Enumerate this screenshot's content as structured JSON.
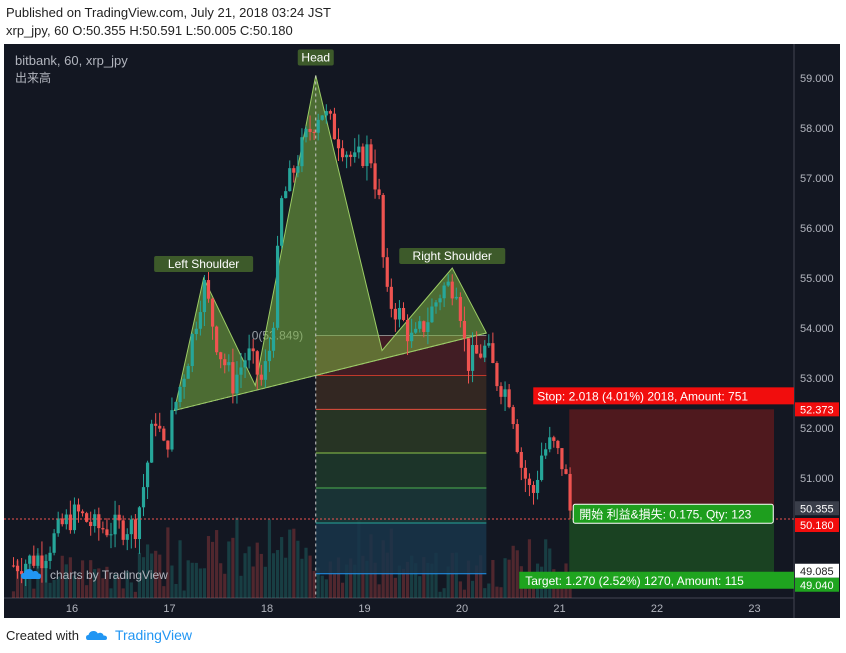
{
  "header": {
    "published": "Published on TradingView.com, July 21, 2018 03:24 JST",
    "ohlc": "xrp_jpy, 60 O:50.355 H:50.591 L:50.005 C:50.180"
  },
  "legend": {
    "symbol": "bitbank, 60, xrp_jpy",
    "volume_label": "出来高"
  },
  "watermark": "charts by TradingView",
  "footer": {
    "created": "Created with",
    "brand": "TradingView"
  },
  "colors": {
    "background": "#131722",
    "up": "#26a69a",
    "down": "#ef5350",
    "pattern_fill": "#7cb342",
    "stop_red": "#f10d0d",
    "target_green": "#1fa41f",
    "pnl_label": "#1e9e1e"
  },
  "chart_data": {
    "type": "candlestick",
    "series_name": "xrp_jpy",
    "ylim": [
      48.6,
      59.6
    ],
    "y_ticks": [
      "59.000",
      "58.000",
      "57.000",
      "56.000",
      "55.000",
      "54.000",
      "53.000",
      "52.000",
      "51.000"
    ],
    "x_ticks": [
      "16",
      "17",
      "18",
      "19",
      "20",
      "21",
      "22",
      "23"
    ],
    "pattern_labels": {
      "left_shoulder": "Left Shoulder",
      "head": "Head",
      "right_shoulder": "Right Shoulder",
      "fib_zero": "0(53.849)"
    },
    "pattern_points": [
      {
        "day": 17.05,
        "price": 52.35
      },
      {
        "day": 17.35,
        "price": 55.0
      },
      {
        "day": 17.88,
        "price": 52.85
      },
      {
        "day": 18.5,
        "price": 59.05
      },
      {
        "day": 19.18,
        "price": 53.55
      },
      {
        "day": 19.9,
        "price": 55.2
      },
      {
        "day": 20.25,
        "price": 53.9
      }
    ],
    "fib_levels": [
      53.849,
      53.05,
      52.373,
      51.5,
      50.8,
      50.1,
      49.085
    ],
    "position": {
      "stop_label": "Stop: 2.018 (4.01%) 2018, Amount: 751",
      "target_label": "Target: 1.270 (2.52%) 1270, Amount: 115",
      "pnl_label": "開始 利益&損失: 0.175, Qty: 123",
      "stop_price": 52.373,
      "entry_price": 50.355,
      "target_price": 49.085,
      "stop_price_label": "52.373",
      "entry_price_label": "50.355",
      "current_price_label": "50.180",
      "target_price_label": "49.085",
      "target_price_label2": "49.040"
    },
    "keypoints": [
      {
        "day": 15.4,
        "price": 49.25
      },
      {
        "day": 15.7,
        "price": 49.45
      },
      {
        "day": 15.9,
        "price": 50.05
      },
      {
        "day": 16.05,
        "price": 50.3
      },
      {
        "day": 16.25,
        "price": 50.0
      },
      {
        "day": 16.4,
        "price": 50.0
      },
      {
        "day": 16.65,
        "price": 50.05
      },
      {
        "day": 16.75,
        "price": 51.0
      },
      {
        "day": 16.85,
        "price": 52.3
      },
      {
        "day": 16.95,
        "price": 51.5
      },
      {
        "day": 17.05,
        "price": 52.4
      },
      {
        "day": 17.2,
        "price": 53.5
      },
      {
        "day": 17.35,
        "price": 54.9
      },
      {
        "day": 17.5,
        "price": 53.6
      },
      {
        "day": 17.65,
        "price": 52.9
      },
      {
        "day": 17.8,
        "price": 53.5
      },
      {
        "day": 17.95,
        "price": 52.9
      },
      {
        "day": 18.05,
        "price": 53.8
      },
      {
        "day": 18.15,
        "price": 56.5
      },
      {
        "day": 18.3,
        "price": 57.3
      },
      {
        "day": 18.4,
        "price": 57.8
      },
      {
        "day": 18.55,
        "price": 58.4
      },
      {
        "day": 18.7,
        "price": 57.9
      },
      {
        "day": 18.9,
        "price": 57.3
      },
      {
        "day": 19.05,
        "price": 57.6
      },
      {
        "day": 19.15,
        "price": 56.5
      },
      {
        "day": 19.22,
        "price": 54.6
      },
      {
        "day": 19.35,
        "price": 54.3
      },
      {
        "day": 19.5,
        "price": 53.7
      },
      {
        "day": 19.65,
        "price": 54.2
      },
      {
        "day": 19.8,
        "price": 54.8
      },
      {
        "day": 19.95,
        "price": 54.9
      },
      {
        "day": 20.05,
        "price": 53.3
      },
      {
        "day": 20.25,
        "price": 53.6
      },
      {
        "day": 20.35,
        "price": 53.0
      },
      {
        "day": 20.5,
        "price": 52.6
      },
      {
        "day": 20.6,
        "price": 51.3
      },
      {
        "day": 20.72,
        "price": 50.6
      },
      {
        "day": 20.82,
        "price": 51.5
      },
      {
        "day": 20.92,
        "price": 51.7
      },
      {
        "day": 21.05,
        "price": 51.2
      },
      {
        "day": 21.12,
        "price": 50.18
      }
    ]
  }
}
